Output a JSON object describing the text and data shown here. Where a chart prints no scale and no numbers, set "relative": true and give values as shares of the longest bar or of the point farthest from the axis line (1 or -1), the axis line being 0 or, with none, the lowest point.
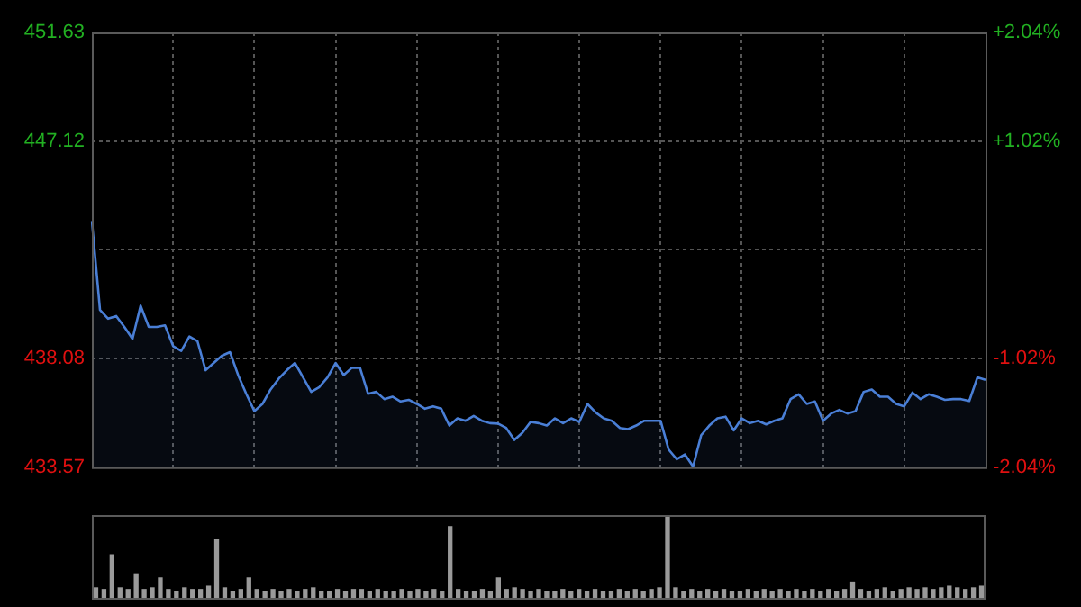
{
  "chart_data": [
    {
      "type": "area",
      "categories": [
        null,
        null,
        null,
        null,
        null,
        null,
        null,
        null,
        null,
        null,
        null,
        null,
        null,
        null,
        null,
        null,
        null,
        null,
        null,
        null,
        null,
        null,
        null,
        null,
        null,
        null,
        null,
        null,
        null,
        null,
        null,
        null,
        null,
        null,
        null,
        null,
        null,
        null,
        null,
        null,
        null,
        null,
        null,
        null,
        null,
        null,
        null,
        null,
        null,
        null,
        null,
        null,
        null,
        null,
        null,
        null,
        null,
        null,
        null,
        null,
        null,
        null,
        null,
        null,
        null,
        null,
        null,
        null,
        null,
        null,
        null,
        null,
        null,
        null,
        null,
        null,
        null,
        null,
        null,
        null,
        null,
        null,
        null,
        null,
        null,
        null,
        null,
        null,
        null,
        null,
        null,
        null,
        null,
        null,
        null,
        null,
        null,
        null,
        null,
        null,
        null,
        null,
        null,
        null,
        null,
        null,
        null,
        null,
        null,
        null,
        null
      ],
      "series": [
        {
          "color": "#4a7fd6",
          "values": [
            443.8,
            440.1,
            439.74,
            439.85,
            439.4,
            438.9,
            440.28,
            439.4,
            439.4,
            439.46,
            438.6,
            438.4,
            439.0,
            438.8,
            437.6,
            437.9,
            438.2,
            438.35,
            437.4,
            436.62,
            435.9,
            436.2,
            436.8,
            437.25,
            437.6,
            437.9,
            437.3,
            436.7,
            436.9,
            437.3,
            437.9,
            437.4,
            437.7,
            437.7,
            436.62,
            436.7,
            436.4,
            436.5,
            436.3,
            436.37,
            436.2,
            436.0,
            436.1,
            436.0,
            435.3,
            435.6,
            435.5,
            435.7,
            435.5,
            435.4,
            435.38,
            435.2,
            434.7,
            435.0,
            435.45,
            435.4,
            435.3,
            435.6,
            435.4,
            435.6,
            435.45,
            436.2,
            435.85,
            435.6,
            435.5,
            435.2,
            435.15,
            435.3,
            435.5,
            435.5,
            435.5,
            434.3,
            433.9,
            434.1,
            433.6,
            434.9,
            435.3,
            435.6,
            435.67,
            435.1,
            435.6,
            435.4,
            435.5,
            435.35,
            435.5,
            435.6,
            436.4,
            436.6,
            436.2,
            436.3,
            435.5,
            435.8,
            435.95,
            435.8,
            435.9,
            436.7,
            436.8,
            436.5,
            436.5,
            436.2,
            436.1,
            436.67,
            436.4,
            436.6,
            436.5,
            436.37,
            436.4,
            436.4,
            436.32,
            437.3,
            437.2
          ]
        }
      ],
      "ylim": [
        433.57,
        451.63
      ],
      "yticks": [
        433.57,
        438.08,
        {
          "value": 442.6,
          "label": null
        },
        447.12,
        451.63
      ],
      "y2lim": [
        -2.04,
        2.04
      ],
      "y2ticks": [
        {
          "value": -2.04,
          "label": "-2.04%"
        },
        {
          "value": -1.02,
          "label": "-1.02%"
        },
        {
          "value": 0,
          "label": null
        },
        {
          "value": 1.02,
          "label": "+1.02%"
        },
        {
          "value": 2.04,
          "label": "+2.04%"
        }
      ],
      "grid": true,
      "tick_labels": "y"
    },
    {
      "type": "bar",
      "relative": true,
      "categories": [
        null,
        null,
        null,
        null,
        null,
        null,
        null,
        null,
        null,
        null,
        null,
        null,
        null,
        null,
        null,
        null,
        null,
        null,
        null,
        null,
        null,
        null,
        null,
        null,
        null,
        null,
        null,
        null,
        null,
        null,
        null,
        null,
        null,
        null,
        null,
        null,
        null,
        null,
        null,
        null,
        null,
        null,
        null,
        null,
        null,
        null,
        null,
        null,
        null,
        null,
        null,
        null,
        null,
        null,
        null,
        null,
        null,
        null,
        null,
        null,
        null,
        null,
        null,
        null,
        null,
        null,
        null,
        null,
        null,
        null,
        null,
        null,
        null,
        null,
        null,
        null,
        null,
        null,
        null,
        null,
        null,
        null,
        null,
        null,
        null,
        null,
        null,
        null,
        null,
        null,
        null,
        null,
        null,
        null,
        null,
        null,
        null,
        null,
        null,
        null,
        null,
        null,
        null,
        null,
        null,
        null,
        null,
        null,
        null,
        null,
        null
      ],
      "color": "#9a9a9a",
      "values": [
        0.12,
        0.1,
        0.52,
        0.12,
        0.1,
        0.29,
        0.1,
        0.12,
        0.24,
        0.1,
        0.08,
        0.12,
        0.1,
        0.1,
        0.14,
        0.71,
        0.12,
        0.08,
        0.1,
        0.24,
        0.1,
        0.08,
        0.1,
        0.08,
        0.1,
        0.08,
        0.1,
        0.12,
        0.08,
        0.08,
        0.1,
        0.08,
        0.1,
        0.1,
        0.08,
        0.1,
        0.08,
        0.08,
        0.1,
        0.08,
        0.1,
        0.08,
        0.1,
        0.08,
        0.86,
        0.1,
        0.08,
        0.08,
        0.1,
        0.08,
        0.24,
        0.1,
        0.12,
        0.1,
        0.08,
        0.1,
        0.08,
        0.08,
        0.1,
        0.08,
        0.1,
        0.08,
        0.1,
        0.08,
        0.08,
        0.1,
        0.08,
        0.1,
        0.08,
        0.1,
        0.12,
        1,
        0.12,
        0.08,
        0.1,
        0.08,
        0.1,
        0.08,
        0.1,
        0.08,
        0.08,
        0.1,
        0.08,
        0.1,
        0.08,
        0.1,
        0.08,
        0.1,
        0.08,
        0.1,
        0.08,
        0.1,
        0.08,
        0.1,
        0.19,
        0.1,
        0.08,
        0.1,
        0.12,
        0.08,
        0.1,
        0.12,
        0.1,
        0.12,
        0.1,
        0.12,
        0.14,
        0.12,
        0.1,
        0.12,
        0.14
      ],
      "tick_labels": false
    }
  ]
}
